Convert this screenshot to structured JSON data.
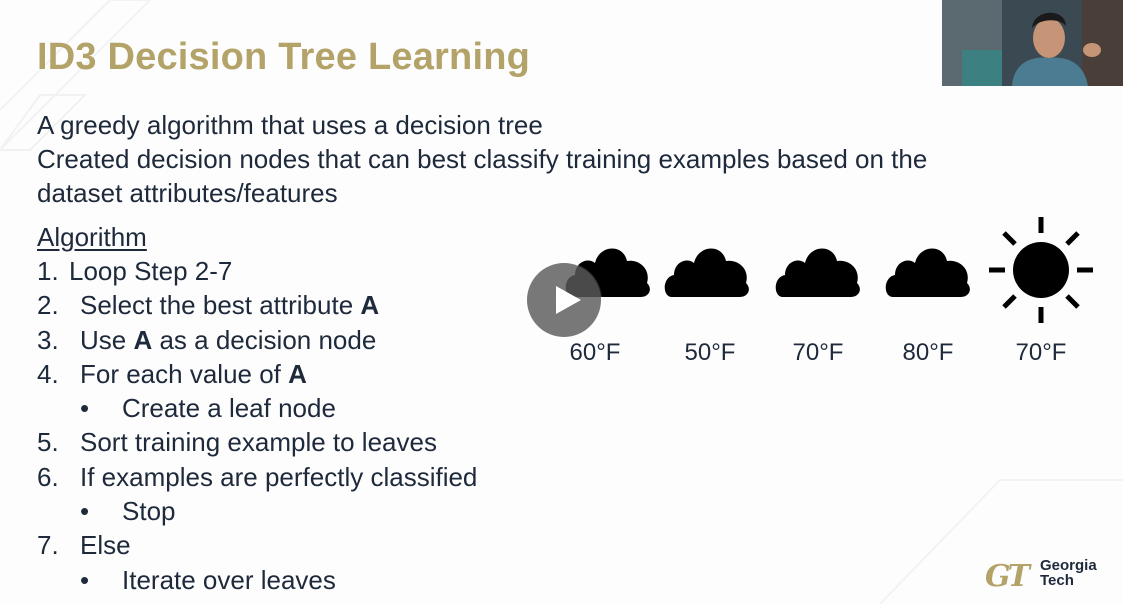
{
  "slide": {
    "title": "ID3 Decision Tree Learning",
    "intro": [
      "A greedy algorithm that uses a decision tree",
      "Created decision nodes that can best classify training examples based on the",
      "dataset attributes/features"
    ],
    "algorithm_heading": "Algorithm",
    "steps": {
      "s1": {
        "num": "1.",
        "text": "Loop Step 2-7"
      },
      "s2": {
        "num": "2.",
        "pre": "Select the best attribute ",
        "bold": "A"
      },
      "s3": {
        "num": "3.",
        "pre": "Use ",
        "bold": "A",
        "post": " as a decision node"
      },
      "s4": {
        "num": "4.",
        "pre": "For each value of ",
        "bold": "A"
      },
      "s4a": {
        "bullet": "•",
        "text": "Create a leaf node"
      },
      "s5": {
        "num": "5.",
        "text": "Sort training example to leaves"
      },
      "s6": {
        "num": "6.",
        "text": "If examples are perfectly classified"
      },
      "s6a": {
        "bullet": "•",
        "text": "Stop"
      },
      "s7": {
        "num": "7.",
        "text": "Else"
      },
      "s7a": {
        "bullet": "•",
        "text": "Iterate over leaves"
      }
    }
  },
  "weather": [
    {
      "icon": "cloud-icon",
      "temp": "60°F"
    },
    {
      "icon": "cloud-icon",
      "temp": "50°F"
    },
    {
      "icon": "cloud-icon",
      "temp": "70°F"
    },
    {
      "icon": "cloud-icon",
      "temp": "80°F"
    },
    {
      "icon": "sun-icon",
      "temp": "70°F"
    }
  ],
  "logo": {
    "line1": "Georgia",
    "line2": "Tech"
  },
  "player": {
    "control": "play-icon"
  },
  "colors": {
    "title": "#b3a369",
    "text": "#1e2a3b",
    "icons": "#000000",
    "play_overlay": "#5a5a5a"
  }
}
